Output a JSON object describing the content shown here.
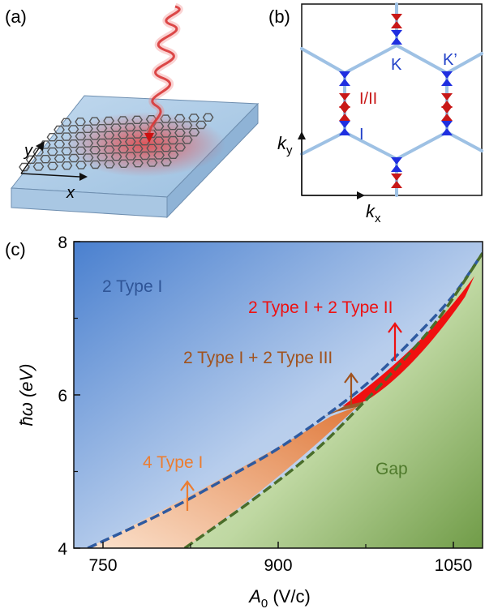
{
  "panel_a": {
    "label": "(a)",
    "axis_x": "x",
    "axis_y": "y"
  },
  "panel_b": {
    "label": "(b)",
    "point_k": "K",
    "point_kp": "K’",
    "type_12": "I/II",
    "type_1": "I",
    "axis_x_main": "k",
    "axis_x_sub": "x",
    "axis_y_main": "k",
    "axis_y_sub": "y"
  },
  "panel_c": {
    "label": "(c)",
    "ylabel": "ħω (eV)",
    "xlabel_main": "A",
    "xlabel_sub": "0",
    "xlabel_unit": " (V/c)",
    "regions": {
      "type1_2": "2 Type I",
      "type1_2_type2_2": "2 Type I + 2 Type II",
      "type1_2_type3_2": "2 Type I + 2 Type III",
      "type1_4": "4 Type I",
      "gap": "Gap"
    },
    "colors": {
      "type2": "#ee1111",
      "type3": "#a0521d",
      "type4": "#ec7d30",
      "gap": "#4f7a2c",
      "type1_label": "#2f5597",
      "boundary_blue": "#2e5aa0",
      "boundary_green": "#4a6d2a"
    }
  },
  "chart_data": {
    "type": "area",
    "title": "",
    "xlabel": "A0 (V/c)",
    "ylabel": "ħω (eV)",
    "xlim": [
      725,
      1075
    ],
    "ylim": [
      4,
      8
    ],
    "xticks": [
      750,
      900,
      1050
    ],
    "yticks": [
      4,
      6,
      8
    ],
    "series": [
      {
        "name": "upper boundary",
        "x": [
          737,
          800,
          860,
          900,
          940,
          980,
          1020,
          1050,
          1075
        ],
        "values": [
          4.0,
          4.45,
          4.95,
          5.3,
          5.72,
          6.2,
          6.8,
          7.3,
          7.85
        ]
      },
      {
        "name": "lower boundary",
        "x": [
          820,
          880,
          930,
          970,
          1010,
          1040,
          1075
        ],
        "values": [
          4.0,
          4.65,
          5.25,
          5.85,
          6.5,
          7.05,
          7.85
        ]
      }
    ]
  }
}
